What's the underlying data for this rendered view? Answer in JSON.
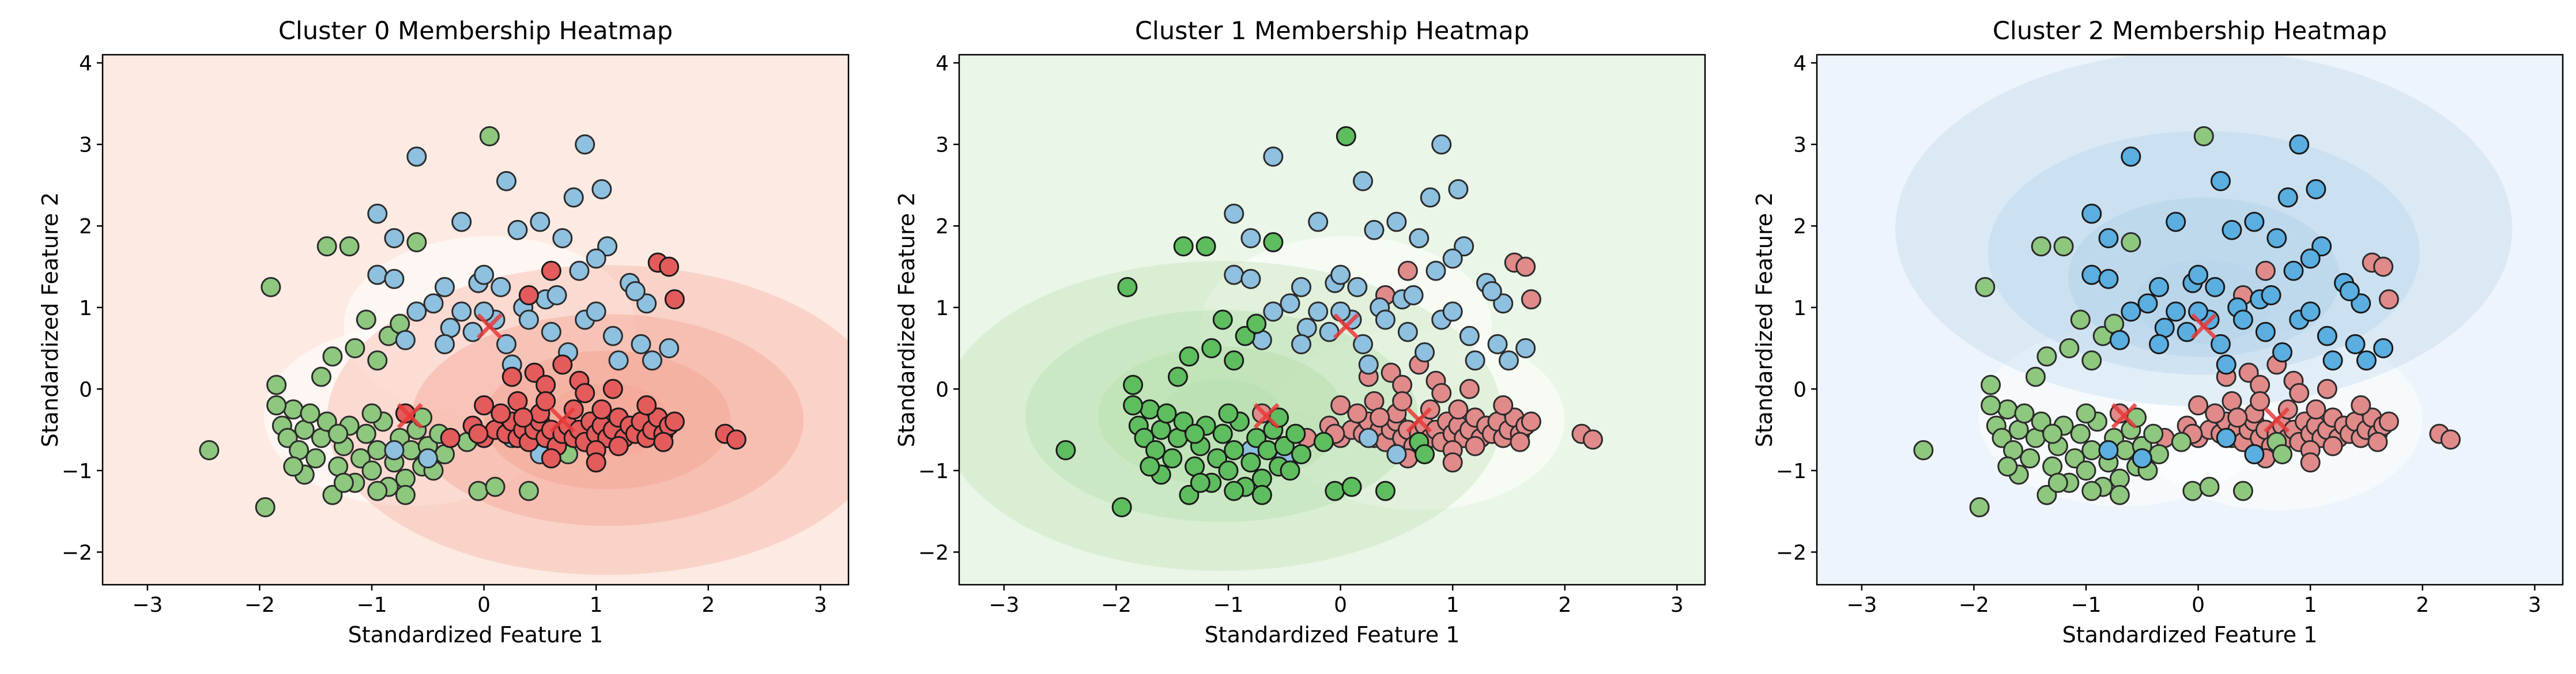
{
  "chart_data": [
    {
      "type": "scatter",
      "title": "Cluster 0 Membership Heatmap",
      "xlabel": "Standardized Feature 1",
      "ylabel": "Standardized Feature 2",
      "xlim": [
        -3.4,
        3.25
      ],
      "ylim": [
        -2.4,
        4.1
      ],
      "xticks": [
        -3,
        -2,
        -1,
        0,
        1,
        2,
        3
      ],
      "yticks": [
        -2,
        -1,
        0,
        1,
        2,
        3,
        4
      ],
      "grid": false,
      "highlight_cluster": 0,
      "heatmap_colormap": "Reds"
    },
    {
      "type": "scatter",
      "title": "Cluster 1 Membership Heatmap",
      "xlabel": "Standardized Feature 1",
      "ylabel": "Standardized Feature 2",
      "xlim": [
        -3.4,
        3.25
      ],
      "ylim": [
        -2.4,
        4.1
      ],
      "xticks": [
        -3,
        -2,
        -1,
        0,
        1,
        2,
        3
      ],
      "yticks": [
        -2,
        -1,
        0,
        1,
        2,
        3,
        4
      ],
      "grid": false,
      "highlight_cluster": 1,
      "heatmap_colormap": "Greens"
    },
    {
      "type": "scatter",
      "title": "Cluster 2 Membership Heatmap",
      "xlabel": "Standardized Feature 1",
      "ylabel": "Standardized Feature 2",
      "xlim": [
        -3.4,
        3.25
      ],
      "ylim": [
        -2.4,
        4.1
      ],
      "xticks": [
        -3,
        -2,
        -1,
        0,
        1,
        2,
        3
      ],
      "yticks": [
        -2,
        -1,
        0,
        1,
        2,
        3,
        4
      ],
      "grid": false,
      "highlight_cluster": 2,
      "heatmap_colormap": "Blues"
    }
  ],
  "clusters": [
    {
      "center": [
        0.7,
        -0.38
      ],
      "point_color_muted": "#e08a8a",
      "point_color_strong": "#e45b5b",
      "heat_light": "#fdebe3",
      "heat_dark": "#f4a696",
      "points": [
        [
          -0.7,
          -0.3
        ],
        [
          -0.3,
          -0.6
        ],
        [
          -0.1,
          -0.45
        ],
        [
          0.0,
          -0.6
        ],
        [
          0.1,
          -0.5
        ],
        [
          0.2,
          -0.55
        ],
        [
          0.25,
          -0.4
        ],
        [
          0.3,
          -0.6
        ],
        [
          0.35,
          -0.5
        ],
        [
          0.4,
          -0.65
        ],
        [
          0.45,
          -0.5
        ],
        [
          0.5,
          -0.4
        ],
        [
          0.55,
          -0.6
        ],
        [
          0.6,
          -0.5
        ],
        [
          0.65,
          -0.7
        ],
        [
          0.7,
          -0.55
        ],
        [
          0.75,
          -0.45
        ],
        [
          0.8,
          -0.6
        ],
        [
          0.85,
          -0.5
        ],
        [
          0.9,
          -0.65
        ],
        [
          0.95,
          -0.4
        ],
        [
          1.0,
          -0.55
        ],
        [
          1.05,
          -0.45
        ],
        [
          1.1,
          -0.6
        ],
        [
          1.15,
          -0.5
        ],
        [
          1.2,
          -0.35
        ],
        [
          1.25,
          -0.6
        ],
        [
          1.3,
          -0.45
        ],
        [
          1.35,
          -0.55
        ],
        [
          1.4,
          -0.4
        ],
        [
          1.45,
          -0.6
        ],
        [
          1.5,
          -0.5
        ],
        [
          1.55,
          -0.35
        ],
        [
          1.6,
          -0.55
        ],
        [
          1.65,
          -0.45
        ],
        [
          1.7,
          -0.4
        ],
        [
          0.45,
          0.2
        ],
        [
          0.55,
          0.05
        ],
        [
          0.7,
          0.3
        ],
        [
          0.85,
          0.1
        ],
        [
          0.9,
          -0.05
        ],
        [
          1.0,
          -0.75
        ],
        [
          0.6,
          -0.85
        ],
        [
          0.3,
          -0.15
        ],
        [
          2.15,
          -0.55
        ],
        [
          2.25,
          -0.62
        ],
        [
          1.05,
          -0.25
        ],
        [
          1.2,
          -0.7
        ],
        [
          0.5,
          -0.3
        ],
        [
          0.35,
          -0.35
        ],
        [
          1.45,
          -0.2
        ],
        [
          0.8,
          -0.25
        ],
        [
          1.6,
          -0.65
        ],
        [
          0.15,
          -0.3
        ],
        [
          0.25,
          0.15
        ],
        [
          0.55,
          -0.15
        ],
        [
          1.15,
          0.0
        ],
        [
          1.55,
          1.55
        ],
        [
          1.65,
          1.5
        ],
        [
          1.7,
          1.1
        ],
        [
          0.6,
          1.45
        ],
        [
          0.4,
          1.15
        ],
        [
          1.0,
          -0.9
        ],
        [
          0.0,
          -0.2
        ],
        [
          -0.05,
          -0.55
        ]
      ]
    },
    {
      "center": [
        -0.66,
        -0.33
      ],
      "point_color_muted": "#8ec77e",
      "point_color_strong": "#5ebd5e",
      "heat_light": "#eaf6e7",
      "heat_dark": "#b9e0b0",
      "points": [
        [
          -2.45,
          -0.75
        ],
        [
          -1.95,
          -1.45
        ],
        [
          -1.85,
          0.05
        ],
        [
          -1.9,
          1.25
        ],
        [
          -1.8,
          -0.45
        ],
        [
          -1.75,
          -0.6
        ],
        [
          -1.7,
          -0.25
        ],
        [
          -1.65,
          -0.75
        ],
        [
          -1.6,
          -0.5
        ],
        [
          -1.55,
          -0.3
        ],
        [
          -1.5,
          -0.85
        ],
        [
          -1.45,
          -0.6
        ],
        [
          -1.4,
          -0.4
        ],
        [
          -1.35,
          -1.3
        ],
        [
          -1.3,
          -0.95
        ],
        [
          -1.25,
          -0.7
        ],
        [
          -1.2,
          -0.45
        ],
        [
          -1.15,
          -1.15
        ],
        [
          -1.1,
          -0.85
        ],
        [
          -1.05,
          -0.55
        ],
        [
          -1.0,
          -1.0
        ],
        [
          -0.95,
          -0.75
        ],
        [
          -0.9,
          -0.4
        ],
        [
          -0.85,
          -1.2
        ],
        [
          -0.8,
          -0.9
        ],
        [
          -0.75,
          -0.6
        ],
        [
          -0.7,
          -1.1
        ],
        [
          -0.65,
          -0.75
        ],
        [
          -0.6,
          -0.5
        ],
        [
          -0.55,
          -0.95
        ],
        [
          -0.5,
          -0.7
        ],
        [
          -0.45,
          -1.0
        ],
        [
          -0.4,
          -0.55
        ],
        [
          -1.4,
          1.75
        ],
        [
          -1.2,
          1.75
        ],
        [
          -1.05,
          0.85
        ],
        [
          -0.85,
          0.65
        ],
        [
          -1.35,
          0.4
        ],
        [
          -1.45,
          0.15
        ],
        [
          -1.25,
          -1.15
        ],
        [
          -1.6,
          -1.05
        ],
        [
          -0.95,
          -1.25
        ],
        [
          -1.15,
          0.5
        ],
        [
          -0.6,
          1.8
        ],
        [
          -0.75,
          0.8
        ],
        [
          -0.05,
          -1.25
        ],
        [
          0.1,
          -1.2
        ],
        [
          0.4,
          -1.25
        ],
        [
          0.05,
          3.1
        ],
        [
          0.7,
          -0.65
        ],
        [
          0.75,
          -0.8
        ],
        [
          -1.7,
          -0.95
        ],
        [
          -1.3,
          -0.55
        ],
        [
          -0.35,
          -0.8
        ],
        [
          -1.0,
          -0.3
        ],
        [
          -0.55,
          -0.35
        ],
        [
          -0.95,
          0.35
        ],
        [
          -0.7,
          -1.3
        ],
        [
          -1.85,
          -0.2
        ],
        [
          -0.15,
          -0.65
        ]
      ]
    },
    {
      "center": [
        0.05,
        0.77
      ],
      "point_color_muted": "#8ec0e0",
      "point_color_strong": "#5aaee0",
      "heat_light": "#eef4fb",
      "heat_dark": "#b7d4ea",
      "points": [
        [
          -0.6,
          2.85
        ],
        [
          -0.95,
          2.15
        ],
        [
          -0.8,
          1.85
        ],
        [
          -0.95,
          1.4
        ],
        [
          -0.8,
          1.35
        ],
        [
          -0.6,
          0.95
        ],
        [
          -0.45,
          1.05
        ],
        [
          -0.3,
          0.75
        ],
        [
          -0.2,
          0.95
        ],
        [
          -0.1,
          0.7
        ],
        [
          -0.05,
          1.3
        ],
        [
          0.0,
          1.4
        ],
        [
          0.1,
          0.85
        ],
        [
          0.2,
          0.55
        ],
        [
          0.2,
          2.55
        ],
        [
          0.3,
          1.95
        ],
        [
          0.35,
          1.0
        ],
        [
          0.4,
          0.85
        ],
        [
          0.5,
          2.05
        ],
        [
          0.55,
          1.1
        ],
        [
          0.6,
          0.7
        ],
        [
          0.7,
          1.85
        ],
        [
          0.75,
          0.45
        ],
        [
          0.8,
          2.35
        ],
        [
          0.85,
          1.45
        ],
        [
          0.9,
          0.85
        ],
        [
          0.9,
          3.0
        ],
        [
          1.0,
          0.95
        ],
        [
          1.05,
          2.45
        ],
        [
          1.1,
          1.75
        ],
        [
          1.15,
          0.65
        ],
        [
          1.2,
          0.35
        ],
        [
          1.3,
          1.3
        ],
        [
          1.4,
          0.55
        ],
        [
          1.45,
          1.05
        ],
        [
          1.5,
          0.35
        ],
        [
          1.65,
          0.5
        ],
        [
          -0.2,
          2.05
        ],
        [
          -0.7,
          0.6
        ],
        [
          -0.35,
          1.25
        ],
        [
          0.25,
          -0.6
        ],
        [
          0.5,
          -0.8
        ],
        [
          -0.5,
          -0.85
        ],
        [
          -0.8,
          -0.75
        ],
        [
          -0.35,
          0.55
        ],
        [
          0.0,
          0.95
        ],
        [
          0.65,
          1.15
        ],
        [
          0.25,
          0.3
        ],
        [
          1.0,
          1.6
        ],
        [
          0.15,
          1.25
        ],
        [
          1.35,
          1.2
        ]
      ]
    }
  ]
}
